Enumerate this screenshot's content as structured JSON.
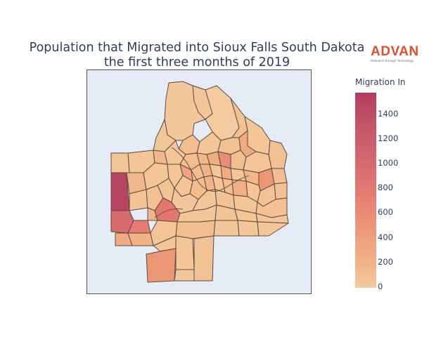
{
  "title": {
    "line1": "Population that Migrated into Sioux Falls South Dakota",
    "line2": "the first three months of 2019"
  },
  "logo": {
    "word": "ADVAN",
    "tagline": "Research through Technology",
    "color": "#e0502b"
  },
  "colorbar": {
    "title": "Migration In",
    "min": 0,
    "max": 1600,
    "ticks": [
      "1400",
      "1200",
      "1000",
      "800",
      "600",
      "400",
      "200",
      "0"
    ],
    "colorscale": [
      "#f3cb9e",
      "#eea07d",
      "#e47a72",
      "#cd5d6c",
      "#b23e5f"
    ]
  },
  "map": {
    "background": "#e5ecf6",
    "border_color": "#555555",
    "tract_outline_color": "#5a4a40"
  }
}
